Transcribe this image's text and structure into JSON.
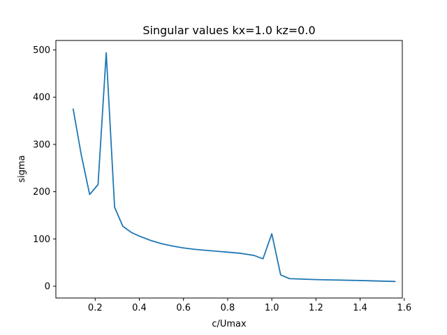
{
  "colors": {
    "background": "#ffffff",
    "axes": "#000000",
    "series_line": "#1f77b4"
  },
  "chart_data": {
    "type": "line",
    "title": "Singular values kx=1.0 kz=0.0",
    "xlabel": "c/Umax",
    "ylabel": "sigma",
    "xlim": [
      0.022,
      1.591
    ],
    "ylim": [
      -25,
      520
    ],
    "grid": false,
    "legend": false,
    "x_ticks": [
      {
        "value": 0.2,
        "label": "0.2"
      },
      {
        "value": 0.4,
        "label": "0.4"
      },
      {
        "value": 0.6,
        "label": "0.6"
      },
      {
        "value": 0.8,
        "label": "0.8"
      },
      {
        "value": 1.0,
        "label": "1.0"
      },
      {
        "value": 1.2,
        "label": "1.2"
      },
      {
        "value": 1.4,
        "label": "1.4"
      },
      {
        "value": 1.6,
        "label": "1.6"
      }
    ],
    "y_ticks": [
      {
        "value": 0,
        "label": "0"
      },
      {
        "value": 100,
        "label": "100"
      },
      {
        "value": 200,
        "label": "200"
      },
      {
        "value": 300,
        "label": "300"
      },
      {
        "value": 400,
        "label": "400"
      },
      {
        "value": 500,
        "label": "500"
      }
    ],
    "series": [
      {
        "x": [
          0.1,
          0.137,
          0.175,
          0.213,
          0.25,
          0.288,
          0.325,
          0.363,
          0.4,
          0.45,
          0.5,
          0.55,
          0.6,
          0.65,
          0.7,
          0.75,
          0.8,
          0.85,
          0.88,
          0.92,
          0.96,
          1.0,
          1.04,
          1.08,
          1.2,
          1.4,
          1.56
        ],
        "y": [
          376,
          278,
          194,
          215,
          494,
          167,
          127,
          114,
          106,
          97,
          90,
          85,
          81,
          78,
          76,
          74,
          72,
          70,
          68,
          65,
          58,
          111,
          24,
          16,
          14,
          12,
          10
        ]
      }
    ]
  }
}
